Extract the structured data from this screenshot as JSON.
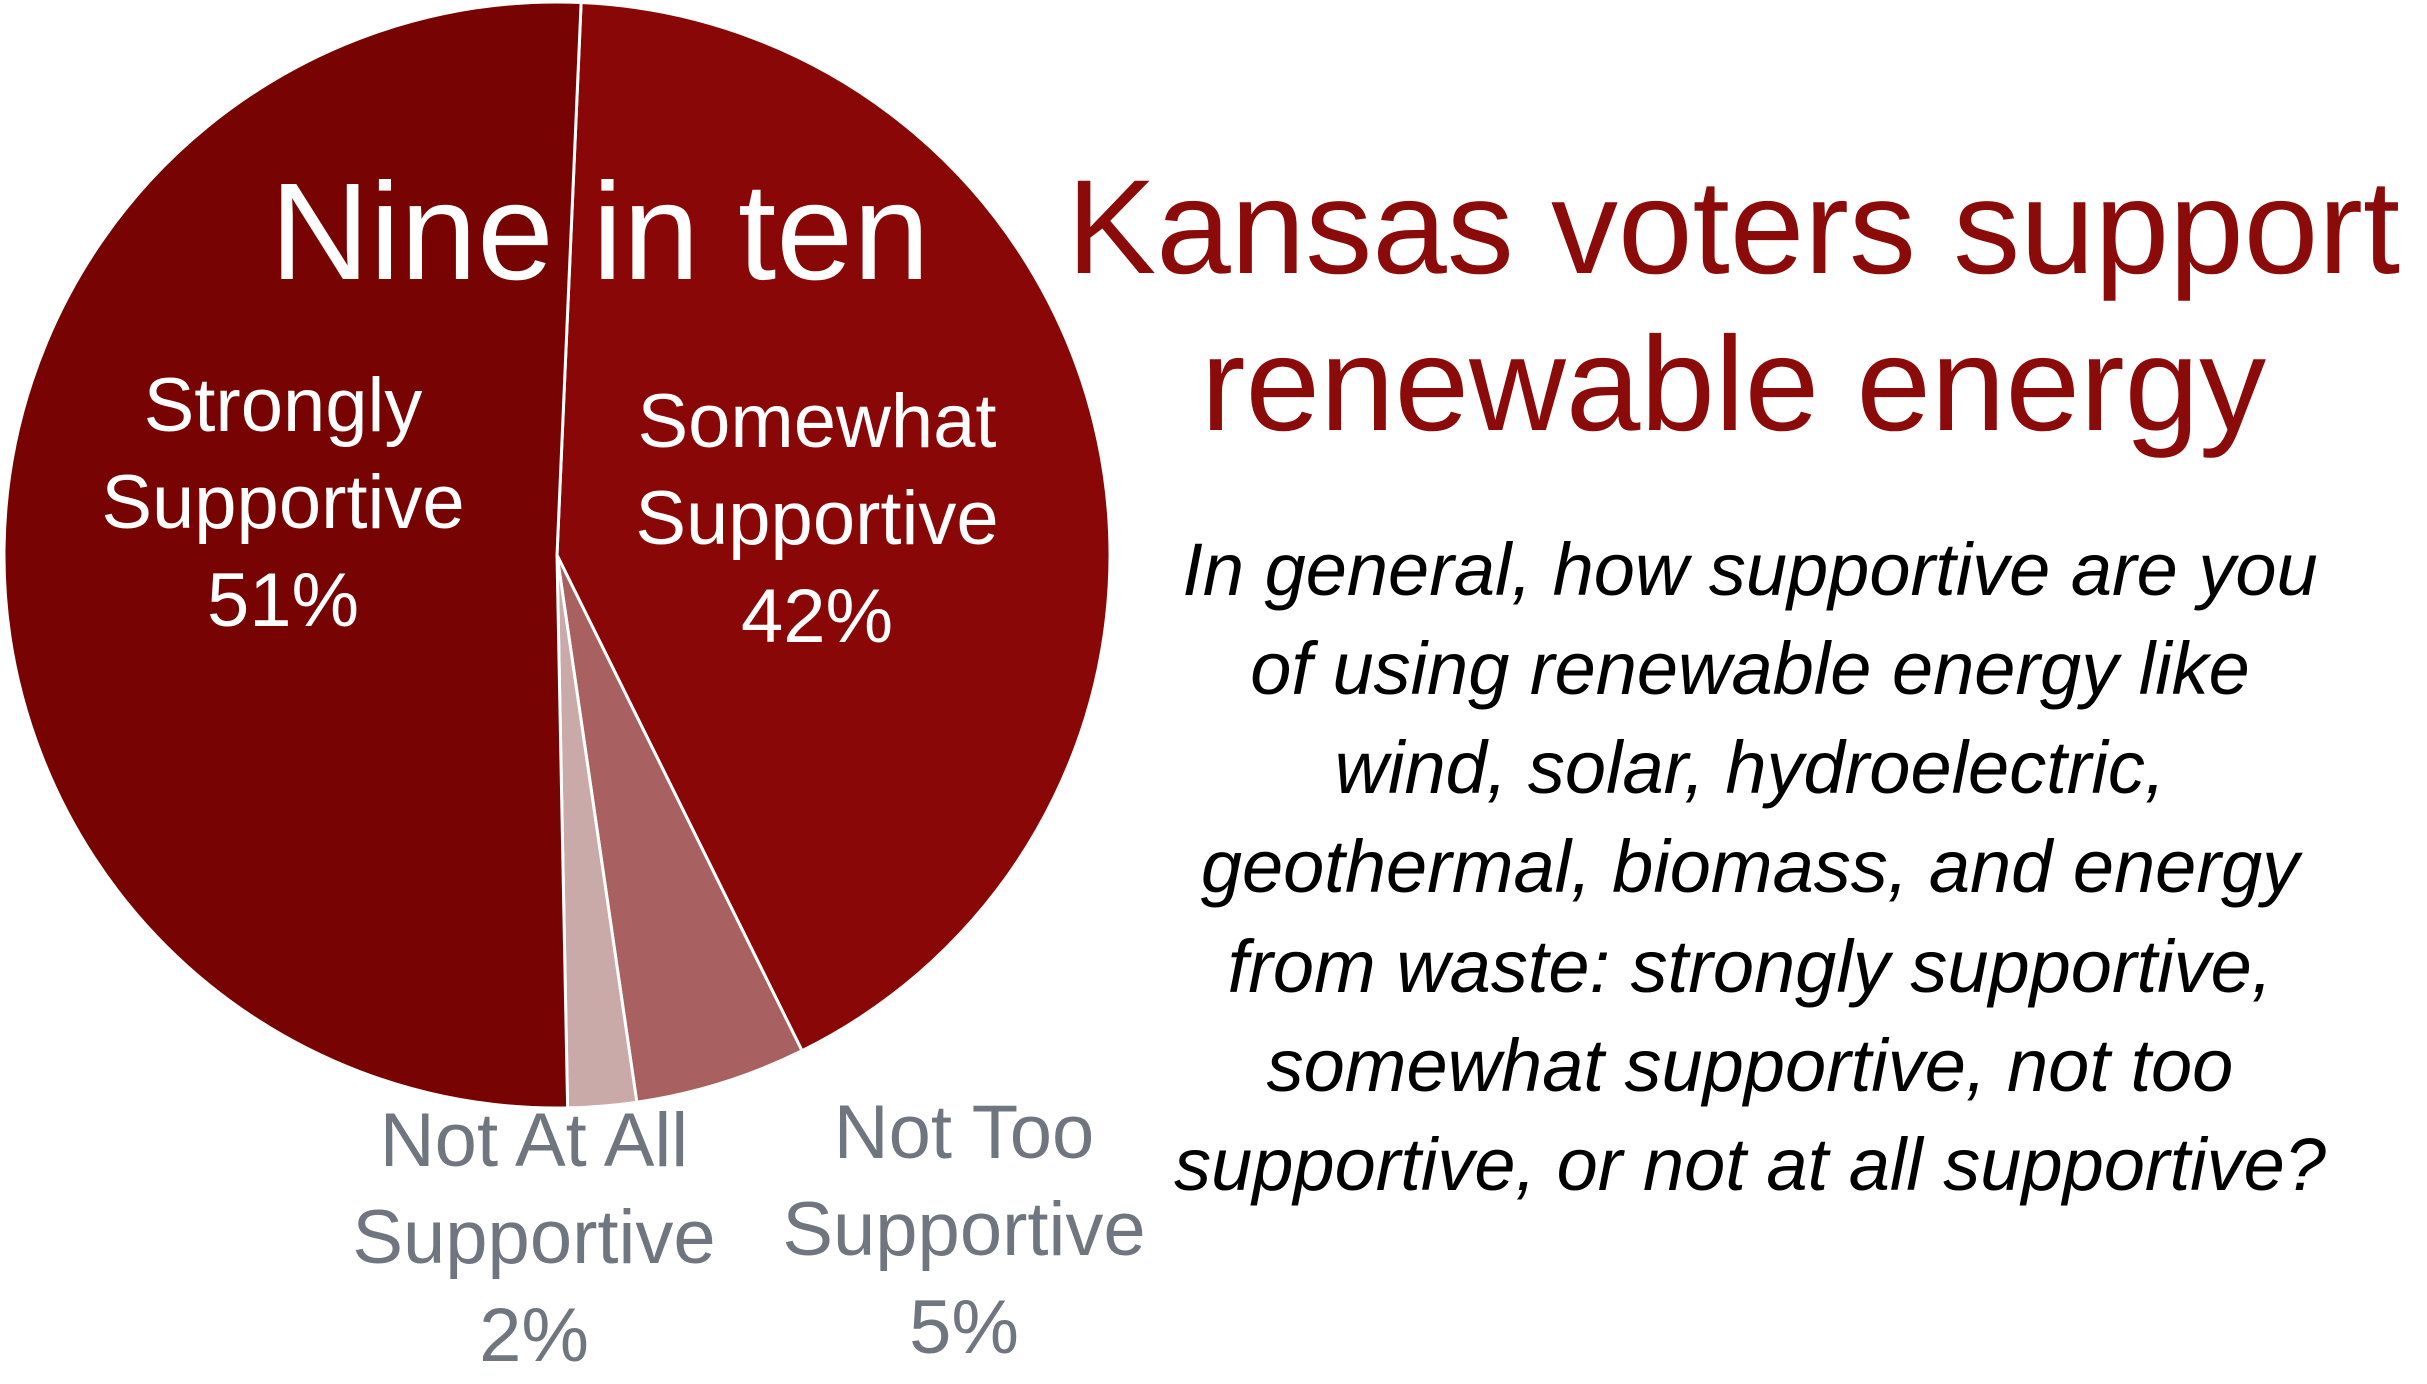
{
  "chart_data": {
    "type": "pie",
    "title_lead": "Nine in ten",
    "title": "Kansas voters support renewable energy",
    "subtitle": "In general, how supportive are you of using renewable energy like wind, solar, hydroelectric, geothermal, biomass, and energy from waste:  strongly supportive, somewhat supportive, not too supportive, or not at all supportive?",
    "categories": [
      "Somewhat Supportive",
      "Not Too Supportive",
      "Not At All Supportive",
      "Strongly Supportive"
    ],
    "values": [
      42,
      5,
      2,
      51
    ],
    "value_labels": [
      "42%",
      "5%",
      "2%",
      "51%"
    ],
    "colors": [
      "#8a0707",
      "#a86060",
      "#caa9a9",
      "#770303"
    ],
    "label_colors": [
      "#ffffff",
      "#6f7680",
      "#6f7680",
      "#ffffff"
    ]
  }
}
